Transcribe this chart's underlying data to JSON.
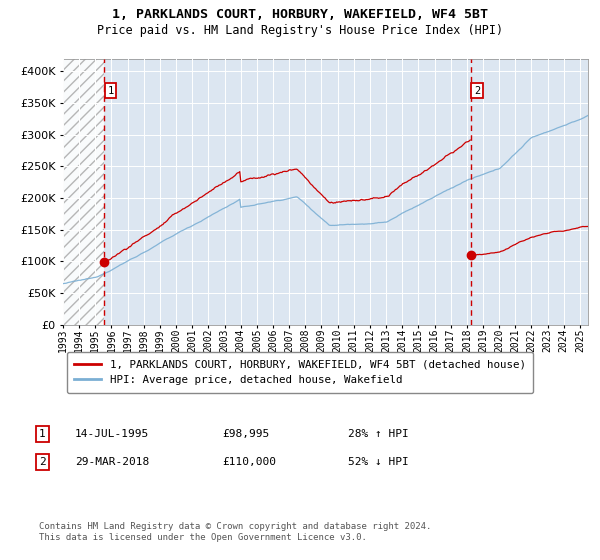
{
  "title": "1, PARKLANDS COURT, HORBURY, WAKEFIELD, WF4 5BT",
  "subtitle": "Price paid vs. HM Land Registry's House Price Index (HPI)",
  "legend_entry1": "1, PARKLANDS COURT, HORBURY, WAKEFIELD, WF4 5BT (detached house)",
  "legend_entry2": "HPI: Average price, detached house, Wakefield",
  "annotation1_date": "14-JUL-1995",
  "annotation1_price": "£98,995",
  "annotation1_hpi": "28% ↑ HPI",
  "annotation2_date": "29-MAR-2018",
  "annotation2_price": "£110,000",
  "annotation2_hpi": "52% ↓ HPI",
  "footer": "Contains HM Land Registry data © Crown copyright and database right 2024.\nThis data is licensed under the Open Government Licence v3.0.",
  "bg_color": "#dce6f1",
  "line_color_property": "#cc0000",
  "line_color_hpi": "#7bafd4",
  "dot_color": "#cc0000",
  "vline_color": "#cc0000",
  "ylim": [
    0,
    420000
  ],
  "yticks": [
    0,
    50000,
    100000,
    150000,
    200000,
    250000,
    300000,
    350000,
    400000
  ],
  "sale1_x": 1995.54,
  "sale1_y": 98995,
  "sale2_x": 2018.24,
  "sale2_y": 110000,
  "xlim_start": 1993,
  "xlim_end": 2025.5
}
